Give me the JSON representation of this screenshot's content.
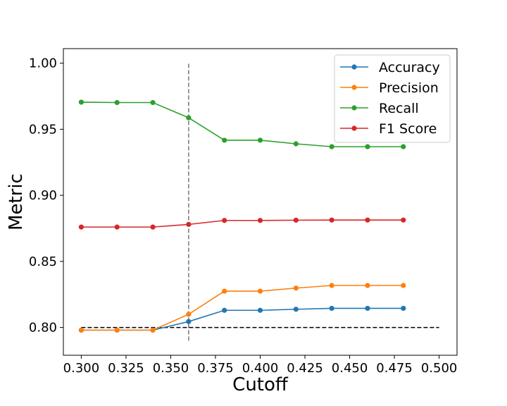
{
  "chart_data": {
    "type": "line",
    "title": "",
    "xlabel": "Cutoff",
    "ylabel": "Metric",
    "xlim": [
      0.29,
      0.51
    ],
    "ylim": [
      0.779,
      1.011
    ],
    "x_ticks": [
      0.3,
      0.325,
      0.35,
      0.375,
      0.4,
      0.425,
      0.45,
      0.475,
      0.5
    ],
    "x_tick_labels": [
      "0.300",
      "0.325",
      "0.350",
      "0.375",
      "0.400",
      "0.425",
      "0.450",
      "0.475",
      "0.500"
    ],
    "y_ticks": [
      0.8,
      0.85,
      0.9,
      0.95,
      1.0
    ],
    "y_tick_labels": [
      "0.80",
      "0.85",
      "0.90",
      "0.95",
      "1.00"
    ],
    "grid": false,
    "legend_position": "top-right",
    "x": [
      0.3,
      0.32,
      0.34,
      0.36,
      0.38,
      0.4,
      0.42,
      0.44,
      0.46,
      0.48
    ],
    "series": [
      {
        "name": "Accuracy",
        "color": "#1f77b4",
        "values": [
          0.798,
          0.798,
          0.798,
          0.8045,
          0.813,
          0.813,
          0.8138,
          0.8145,
          0.8145,
          0.8145
        ]
      },
      {
        "name": "Precision",
        "color": "#ff7f0e",
        "values": [
          0.798,
          0.798,
          0.798,
          0.81,
          0.8275,
          0.8275,
          0.8298,
          0.8318,
          0.8318,
          0.8318
        ]
      },
      {
        "name": "Recall",
        "color": "#2ca02c",
        "values": [
          0.9705,
          0.9702,
          0.9702,
          0.9587,
          0.9417,
          0.9417,
          0.939,
          0.9368,
          0.9368,
          0.9368
        ]
      },
      {
        "name": "F1 Score",
        "color": "#d62728",
        "values": [
          0.876,
          0.876,
          0.876,
          0.878,
          0.881,
          0.881,
          0.8812,
          0.8813,
          0.8813,
          0.8813
        ]
      }
    ],
    "reference_lines": [
      {
        "orientation": "vertical",
        "x": 0.36,
        "y_range": [
          0.79,
          1.0
        ],
        "style": "dashed",
        "color": "#808080"
      },
      {
        "orientation": "horizontal",
        "y": 0.8,
        "x_range": [
          0.3,
          0.5
        ],
        "style": "dashed",
        "color": "#000000"
      }
    ]
  }
}
